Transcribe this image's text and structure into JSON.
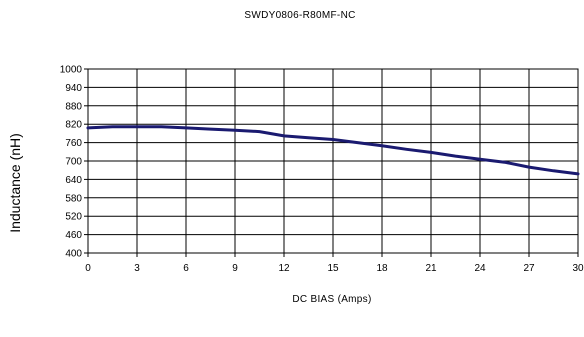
{
  "chart_data": {
    "type": "line",
    "title": "SWDY0806-R80MF-NC",
    "xlabel": "DC BIAS (Amps)",
    "ylabel": "Inductance (nH)",
    "xlim": [
      0,
      30
    ],
    "ylim": [
      400,
      1000
    ],
    "xticks": [
      "0",
      "3",
      "6",
      "9",
      "12",
      "15",
      "18",
      "21",
      "24",
      "27",
      "30"
    ],
    "yticks": [
      "400",
      "460",
      "520",
      "580",
      "640",
      "700",
      "760",
      "820",
      "880",
      "940",
      "1000"
    ],
    "grid": true,
    "line_color": "#1a1a70",
    "series": [
      {
        "x": [
          0,
          1.5,
          3,
          4.5,
          6,
          7.5,
          9,
          10.5,
          12,
          13.5,
          15,
          16.5,
          18,
          19.5,
          21,
          22.5,
          24,
          25.5,
          27,
          28.5,
          30
        ],
        "y": [
          808,
          812,
          812,
          812,
          808,
          804,
          800,
          796,
          782,
          776,
          770,
          760,
          750,
          738,
          728,
          716,
          706,
          696,
          680,
          668,
          658
        ]
      }
    ]
  }
}
